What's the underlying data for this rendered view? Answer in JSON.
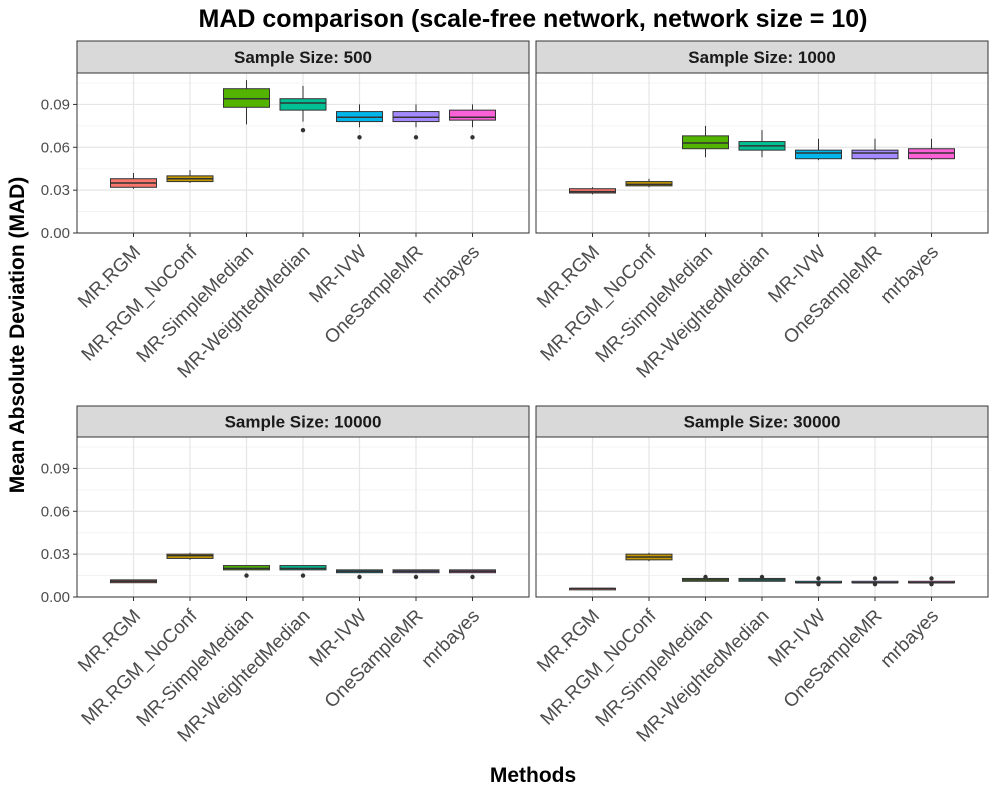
{
  "chart_data": {
    "type": "boxplot",
    "title": "MAD comparison (scale-free network, network size = 10)",
    "xlabel": "Methods",
    "ylabel": "Mean Absolute Deviation (MAD)",
    "ylim": [
      0,
      0.112
    ],
    "yticks": [
      0.0,
      0.03,
      0.06,
      0.09
    ],
    "ytick_labels": [
      "0.00",
      "0.03",
      "0.06",
      "0.09"
    ],
    "grid": true,
    "legend": "none",
    "categories": [
      "MR.RGM",
      "MR.RGM_NoConf",
      "MR-SimpleMedian",
      "MR-WeightedMedian",
      "MR-IVW",
      "OneSampleMR",
      "mrbayes"
    ],
    "colors": [
      "#F8766D",
      "#C49A00",
      "#53B400",
      "#00C094",
      "#00B6EB",
      "#A58AFF",
      "#FB61D7"
    ],
    "panels": [
      {
        "label": "Sample Size: 500",
        "boxes": [
          {
            "min": 0.031,
            "q1": 0.032,
            "median": 0.035,
            "q3": 0.038,
            "max": 0.042,
            "outliers": []
          },
          {
            "min": 0.035,
            "q1": 0.036,
            "median": 0.038,
            "q3": 0.04,
            "max": 0.044,
            "outliers": []
          },
          {
            "min": 0.076,
            "q1": 0.088,
            "median": 0.094,
            "q3": 0.101,
            "max": 0.107,
            "outliers": []
          },
          {
            "min": 0.078,
            "q1": 0.086,
            "median": 0.091,
            "q3": 0.094,
            "max": 0.103,
            "outliers": [
              0.072
            ]
          },
          {
            "min": 0.074,
            "q1": 0.078,
            "median": 0.081,
            "q3": 0.085,
            "max": 0.09,
            "outliers": [
              0.067
            ]
          },
          {
            "min": 0.074,
            "q1": 0.078,
            "median": 0.081,
            "q3": 0.085,
            "max": 0.09,
            "outliers": [
              0.067
            ]
          },
          {
            "min": 0.074,
            "q1": 0.079,
            "median": 0.081,
            "q3": 0.086,
            "max": 0.09,
            "outliers": [
              0.067
            ]
          }
        ]
      },
      {
        "label": "Sample Size: 1000",
        "boxes": [
          {
            "min": 0.027,
            "q1": 0.028,
            "median": 0.029,
            "q3": 0.031,
            "max": 0.032,
            "outliers": []
          },
          {
            "min": 0.032,
            "q1": 0.033,
            "median": 0.034,
            "q3": 0.036,
            "max": 0.038,
            "outliers": []
          },
          {
            "min": 0.053,
            "q1": 0.059,
            "median": 0.063,
            "q3": 0.068,
            "max": 0.075,
            "outliers": []
          },
          {
            "min": 0.053,
            "q1": 0.058,
            "median": 0.061,
            "q3": 0.064,
            "max": 0.072,
            "outliers": []
          },
          {
            "min": 0.051,
            "q1": 0.052,
            "median": 0.056,
            "q3": 0.058,
            "max": 0.066,
            "outliers": []
          },
          {
            "min": 0.051,
            "q1": 0.052,
            "median": 0.056,
            "q3": 0.058,
            "max": 0.066,
            "outliers": []
          },
          {
            "min": 0.051,
            "q1": 0.052,
            "median": 0.056,
            "q3": 0.059,
            "max": 0.066,
            "outliers": []
          }
        ]
      },
      {
        "label": "Sample Size: 10000",
        "boxes": [
          {
            "min": 0.01,
            "q1": 0.01,
            "median": 0.011,
            "q3": 0.012,
            "max": 0.012,
            "outliers": []
          },
          {
            "min": 0.026,
            "q1": 0.027,
            "median": 0.029,
            "q3": 0.03,
            "max": 0.031,
            "outliers": []
          },
          {
            "min": 0.019,
            "q1": 0.019,
            "median": 0.02,
            "q3": 0.022,
            "max": 0.022,
            "outliers": [
              0.015
            ]
          },
          {
            "min": 0.019,
            "q1": 0.019,
            "median": 0.02,
            "q3": 0.022,
            "max": 0.022,
            "outliers": [
              0.015
            ]
          },
          {
            "min": 0.017,
            "q1": 0.017,
            "median": 0.018,
            "q3": 0.019,
            "max": 0.019,
            "outliers": [
              0.014
            ]
          },
          {
            "min": 0.017,
            "q1": 0.017,
            "median": 0.018,
            "q3": 0.019,
            "max": 0.019,
            "outliers": [
              0.014
            ]
          },
          {
            "min": 0.017,
            "q1": 0.017,
            "median": 0.018,
            "q3": 0.019,
            "max": 0.019,
            "outliers": [
              0.014
            ]
          }
        ]
      },
      {
        "label": "Sample Size: 30000",
        "boxes": [
          {
            "min": 0.005,
            "q1": 0.005,
            "median": 0.006,
            "q3": 0.006,
            "max": 0.006,
            "outliers": []
          },
          {
            "min": 0.025,
            "q1": 0.026,
            "median": 0.028,
            "q3": 0.03,
            "max": 0.031,
            "outliers": []
          },
          {
            "min": 0.011,
            "q1": 0.011,
            "median": 0.012,
            "q3": 0.013,
            "max": 0.013,
            "outliers": [
              0.014
            ]
          },
          {
            "min": 0.011,
            "q1": 0.011,
            "median": 0.012,
            "q3": 0.013,
            "max": 0.013,
            "outliers": [
              0.014
            ]
          },
          {
            "min": 0.01,
            "q1": 0.01,
            "median": 0.01,
            "q3": 0.011,
            "max": 0.011,
            "outliers": [
              0.013,
              0.009
            ]
          },
          {
            "min": 0.01,
            "q1": 0.01,
            "median": 0.01,
            "q3": 0.011,
            "max": 0.011,
            "outliers": [
              0.013,
              0.009
            ]
          },
          {
            "min": 0.01,
            "q1": 0.01,
            "median": 0.01,
            "q3": 0.011,
            "max": 0.011,
            "outliers": [
              0.013,
              0.009
            ]
          }
        ]
      }
    ]
  }
}
